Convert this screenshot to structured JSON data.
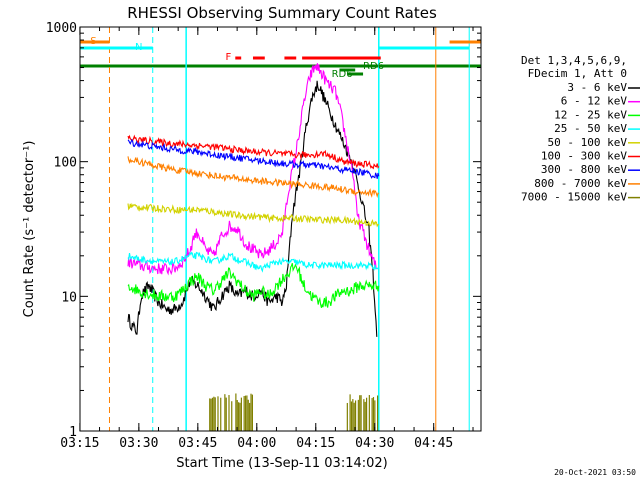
{
  "chart_data": {
    "type": "line",
    "title": "RHESSI Observing Summary Count Rates",
    "xlabel": "Start Time (13-Sep-11 03:14:02)",
    "ylabel": "Count Rate (s⁻¹ detector⁻¹)",
    "x_tick_labels": [
      "03:15",
      "03:30",
      "03:45",
      "04:00",
      "04:15",
      "04:30",
      "04:45"
    ],
    "x_tick_minutes": [
      -0.03,
      14.97,
      29.97,
      44.97,
      59.97,
      74.97,
      89.97
    ],
    "y_tick_labels": [
      "1",
      "10",
      "100",
      "1000"
    ],
    "y_tick_values": [
      1,
      10,
      100,
      1000
    ],
    "yscale": "log",
    "xlim_minutes": [
      0,
      102
    ],
    "ylim": [
      1,
      1000
    ],
    "legend": {
      "header": [
        "Det 1,3,4,5,6,9,",
        "FDecim 1, Att 0"
      ],
      "placement": "right"
    },
    "timestamp": "20-Oct-2021 03:50",
    "data_gap": [
      27.0,
      76.0
    ],
    "series": [
      {
        "name": "3 - 6 keV",
        "color": "#000000",
        "points": [
          [
            12.2,
            7
          ],
          [
            13.3,
            6
          ],
          [
            14.5,
            5.5
          ],
          [
            15.5,
            10
          ],
          [
            17.5,
            12
          ],
          [
            20,
            9
          ],
          [
            22,
            8
          ],
          [
            24,
            8
          ],
          [
            26,
            9
          ],
          [
            28,
            13
          ],
          [
            30,
            12
          ],
          [
            32,
            10
          ],
          [
            34,
            8
          ],
          [
            36,
            10
          ],
          [
            38,
            12
          ],
          [
            40,
            10
          ],
          [
            42,
            11
          ],
          [
            44,
            10
          ],
          [
            46,
            11
          ],
          [
            48,
            9
          ],
          [
            50,
            10
          ],
          [
            51.5,
            9
          ],
          [
            52.5,
            12
          ],
          [
            54,
            40
          ],
          [
            56,
            90
          ],
          [
            57.5,
            180
          ],
          [
            59,
            300
          ],
          [
            60.5,
            380
          ],
          [
            62,
            300
          ],
          [
            64,
            220
          ],
          [
            66,
            160
          ],
          [
            68,
            120
          ],
          [
            69.5,
            95
          ],
          [
            70.5,
            70
          ],
          [
            71.5,
            55
          ],
          [
            72.5,
            40
          ],
          [
            73.5,
            30
          ],
          [
            74.5,
            15
          ],
          [
            75.5,
            5
          ]
        ]
      },
      {
        "name": "6 - 12 keV",
        "color": "#ff00ff",
        "points": [
          [
            12.2,
            18
          ],
          [
            15,
            17
          ],
          [
            20,
            16
          ],
          [
            24,
            16
          ],
          [
            26,
            18
          ],
          [
            28,
            22
          ],
          [
            29,
            28
          ],
          [
            30,
            30
          ],
          [
            32,
            22
          ],
          [
            34,
            20
          ],
          [
            36,
            28
          ],
          [
            38,
            33
          ],
          [
            40,
            32
          ],
          [
            42,
            25
          ],
          [
            44,
            22
          ],
          [
            46,
            20
          ],
          [
            48,
            22
          ],
          [
            50,
            25
          ],
          [
            51.5,
            30
          ],
          [
            53,
            60
          ],
          [
            55,
            120
          ],
          [
            57,
            280
          ],
          [
            58.5,
            430
          ],
          [
            60,
            520
          ],
          [
            61.5,
            450
          ],
          [
            63,
            380
          ],
          [
            65,
            330
          ],
          [
            66.5,
            220
          ],
          [
            68,
            130
          ],
          [
            69.5,
            80
          ],
          [
            70.5,
            40
          ],
          [
            72,
            30
          ],
          [
            74,
            20
          ],
          [
            75.5,
            16
          ]
        ]
      },
      {
        "name": "12 - 25 keV",
        "color": "#00ff00",
        "points": [
          [
            12.2,
            12
          ],
          [
            15,
            11
          ],
          [
            20,
            10
          ],
          [
            24,
            10
          ],
          [
            26,
            11
          ],
          [
            28,
            13
          ],
          [
            30,
            14
          ],
          [
            32,
            12
          ],
          [
            34,
            11
          ],
          [
            36,
            13
          ],
          [
            38,
            15
          ],
          [
            40,
            13
          ],
          [
            42,
            11
          ],
          [
            44,
            10
          ],
          [
            46,
            11
          ],
          [
            48,
            10
          ],
          [
            50,
            12
          ],
          [
            52,
            14
          ],
          [
            55,
            17
          ],
          [
            57,
            12
          ],
          [
            59,
            10
          ],
          [
            61,
            9
          ],
          [
            63,
            9
          ],
          [
            65,
            10
          ],
          [
            67,
            11
          ],
          [
            69,
            11
          ],
          [
            71,
            12
          ],
          [
            73,
            12
          ],
          [
            75,
            12
          ],
          [
            76,
            12
          ]
        ]
      },
      {
        "name": "25 - 50 keV",
        "color": "#00ffff",
        "points": [
          [
            12.2,
            20
          ],
          [
            15,
            19
          ],
          [
            20,
            18
          ],
          [
            24,
            18
          ],
          [
            26,
            19
          ],
          [
            28,
            20
          ],
          [
            30,
            20
          ],
          [
            32,
            19
          ],
          [
            34,
            18
          ],
          [
            36,
            19
          ],
          [
            38,
            20
          ],
          [
            40,
            19
          ],
          [
            42,
            18
          ],
          [
            44,
            17
          ],
          [
            46,
            16
          ],
          [
            48,
            17
          ],
          [
            50,
            18
          ],
          [
            52,
            18
          ],
          [
            55,
            18
          ],
          [
            58,
            17
          ],
          [
            61,
            17
          ],
          [
            64,
            17
          ],
          [
            67,
            17
          ],
          [
            70,
            17
          ],
          [
            73,
            17
          ],
          [
            76,
            16
          ]
        ]
      },
      {
        "name": "50 - 100 keV",
        "color": "#d2d200",
        "points": [
          [
            12.2,
            47
          ],
          [
            15,
            46
          ],
          [
            20,
            45
          ],
          [
            25,
            44
          ],
          [
            30,
            44
          ],
          [
            35,
            42
          ],
          [
            40,
            40
          ],
          [
            45,
            39
          ],
          [
            50,
            38
          ],
          [
            55,
            38
          ],
          [
            60,
            37
          ],
          [
            65,
            37
          ],
          [
            70,
            36
          ],
          [
            74,
            35
          ],
          [
            76,
            34
          ]
        ]
      },
      {
        "name": "100 - 300 keV",
        "color": "#ff0000",
        "points": [
          [
            12.2,
            150
          ],
          [
            15,
            145
          ],
          [
            20,
            140
          ],
          [
            25,
            135
          ],
          [
            30,
            132
          ],
          [
            35,
            128
          ],
          [
            40,
            122
          ],
          [
            45,
            118
          ],
          [
            50,
            115
          ],
          [
            55,
            112
          ],
          [
            58,
            112
          ],
          [
            62,
            115
          ],
          [
            64,
            110
          ],
          [
            67,
            100
          ],
          [
            70,
            97
          ],
          [
            73,
            95
          ],
          [
            76,
            92
          ]
        ]
      },
      {
        "name": "300 - 800 keV",
        "color": "#0000ff",
        "points": [
          [
            12.2,
            140
          ],
          [
            15,
            135
          ],
          [
            20,
            128
          ],
          [
            25,
            122
          ],
          [
            30,
            118
          ],
          [
            35,
            112
          ],
          [
            40,
            107
          ],
          [
            45,
            102
          ],
          [
            50,
            98
          ],
          [
            55,
            95
          ],
          [
            58,
            95
          ],
          [
            62,
            92
          ],
          [
            66,
            88
          ],
          [
            70,
            85
          ],
          [
            73,
            82
          ],
          [
            76,
            78
          ]
        ]
      },
      {
        "name": "800 - 7000 keV",
        "color": "#ff8000",
        "points": [
          [
            12.2,
            105
          ],
          [
            15,
            100
          ],
          [
            20,
            92
          ],
          [
            25,
            86
          ],
          [
            30,
            82
          ],
          [
            35,
            78
          ],
          [
            40,
            75
          ],
          [
            45,
            72
          ],
          [
            50,
            70
          ],
          [
            55,
            68
          ],
          [
            60,
            66
          ],
          [
            64,
            64
          ],
          [
            67,
            62
          ],
          [
            70,
            60
          ],
          [
            73,
            59
          ],
          [
            76,
            58
          ]
        ]
      },
      {
        "name": "7000 - 15000 keV",
        "color": "#808000",
        "points": []
      }
    ]
  }
}
